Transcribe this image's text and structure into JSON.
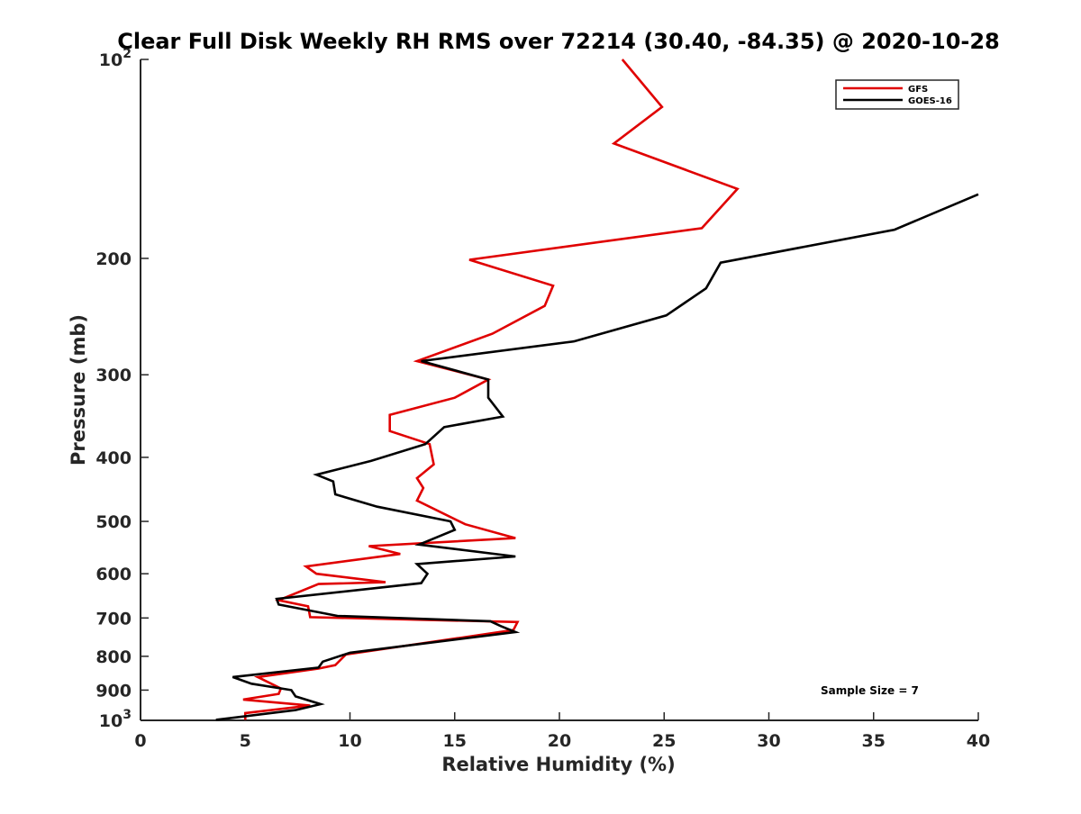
{
  "chart_data": {
    "type": "line",
    "title": "Clear Full Disk Weekly RH RMS over 72214 (30.40, -84.35) @ 2020-10-28",
    "xlabel": "Relative Humidity (%)",
    "ylabel": "Pressure (mb)",
    "xlim": [
      0,
      40
    ],
    "ylim": [
      100,
      1000
    ],
    "y_scale": "log",
    "y_reversed": true,
    "xticks": [
      0,
      5,
      10,
      15,
      20,
      25,
      30,
      35,
      40
    ],
    "xtick_labels": [
      "0",
      "5",
      "10",
      "15",
      "20",
      "25",
      "30",
      "35",
      "40"
    ],
    "yticks": [
      {
        "value": 100,
        "base": "10",
        "exp": "2"
      },
      {
        "value": 200,
        "label": "200"
      },
      {
        "value": 300,
        "label": "300"
      },
      {
        "value": 400,
        "label": "400"
      },
      {
        "value": 500,
        "label": "500"
      },
      {
        "value": 600,
        "label": "600"
      },
      {
        "value": 700,
        "label": "700"
      },
      {
        "value": 800,
        "label": "800"
      },
      {
        "value": 900,
        "label": "900"
      },
      {
        "value": 1000,
        "base": "10",
        "exp": "3"
      }
    ],
    "legend_position": "top-right",
    "annotation": "Sample Size = 7",
    "series": [
      {
        "name": "GFS",
        "color": "#e00000",
        "points": [
          [
            23.0,
            100
          ],
          [
            24.9,
            118
          ],
          [
            22.6,
            134
          ],
          [
            28.5,
            157
          ],
          [
            26.8,
            180
          ],
          [
            15.7,
            201
          ],
          [
            19.7,
            220
          ],
          [
            19.3,
            236
          ],
          [
            16.8,
            260
          ],
          [
            13.2,
            286
          ],
          [
            16.6,
            305
          ],
          [
            15.0,
            325
          ],
          [
            11.9,
            345
          ],
          [
            11.9,
            365
          ],
          [
            13.8,
            382
          ],
          [
            14.0,
            410
          ],
          [
            13.2,
            430
          ],
          [
            13.5,
            445
          ],
          [
            13.2,
            465
          ],
          [
            15.5,
            505
          ],
          [
            17.9,
            530
          ],
          [
            10.9,
            545
          ],
          [
            12.4,
            560
          ],
          [
            7.9,
            585
          ],
          [
            8.4,
            600
          ],
          [
            11.7,
            618
          ],
          [
            8.5,
            622
          ],
          [
            6.6,
            658
          ],
          [
            8.0,
            672
          ],
          [
            8.1,
            698
          ],
          [
            18.0,
            710
          ],
          [
            17.8,
            730
          ],
          [
            9.8,
            795
          ],
          [
            9.3,
            825
          ],
          [
            8.5,
            835
          ],
          [
            5.6,
            860
          ],
          [
            6.7,
            895
          ],
          [
            6.6,
            912
          ],
          [
            4.9,
            930
          ],
          [
            8.1,
            950
          ],
          [
            5.0,
            975
          ],
          [
            5.0,
            998
          ]
        ]
      },
      {
        "name": "GOES-16",
        "color": "#000000",
        "points": [
          [
            40.0,
            160
          ],
          [
            36.0,
            181
          ],
          [
            27.7,
            203
          ],
          [
            27.0,
            222
          ],
          [
            25.1,
            244
          ],
          [
            20.7,
            267
          ],
          [
            13.4,
            286
          ],
          [
            16.6,
            305
          ],
          [
            16.6,
            325
          ],
          [
            17.3,
            347
          ],
          [
            14.5,
            360
          ],
          [
            13.6,
            382
          ],
          [
            11.0,
            405
          ],
          [
            8.4,
            425
          ],
          [
            9.2,
            435
          ],
          [
            9.3,
            455
          ],
          [
            11.3,
            475
          ],
          [
            14.8,
            500
          ],
          [
            15.0,
            515
          ],
          [
            13.3,
            542
          ],
          [
            17.9,
            565
          ],
          [
            13.2,
            580
          ],
          [
            13.7,
            600
          ],
          [
            13.4,
            620
          ],
          [
            6.5,
            655
          ],
          [
            6.6,
            668
          ],
          [
            9.4,
            695
          ],
          [
            16.7,
            708
          ],
          [
            17.2,
            720
          ],
          [
            17.9,
            735
          ],
          [
            10.0,
            790
          ],
          [
            8.7,
            815
          ],
          [
            8.5,
            832
          ],
          [
            4.4,
            860
          ],
          [
            5.3,
            880
          ],
          [
            7.2,
            900
          ],
          [
            7.4,
            920
          ],
          [
            8.6,
            945
          ],
          [
            7.4,
            965
          ],
          [
            3.6,
            998
          ]
        ]
      }
    ]
  }
}
